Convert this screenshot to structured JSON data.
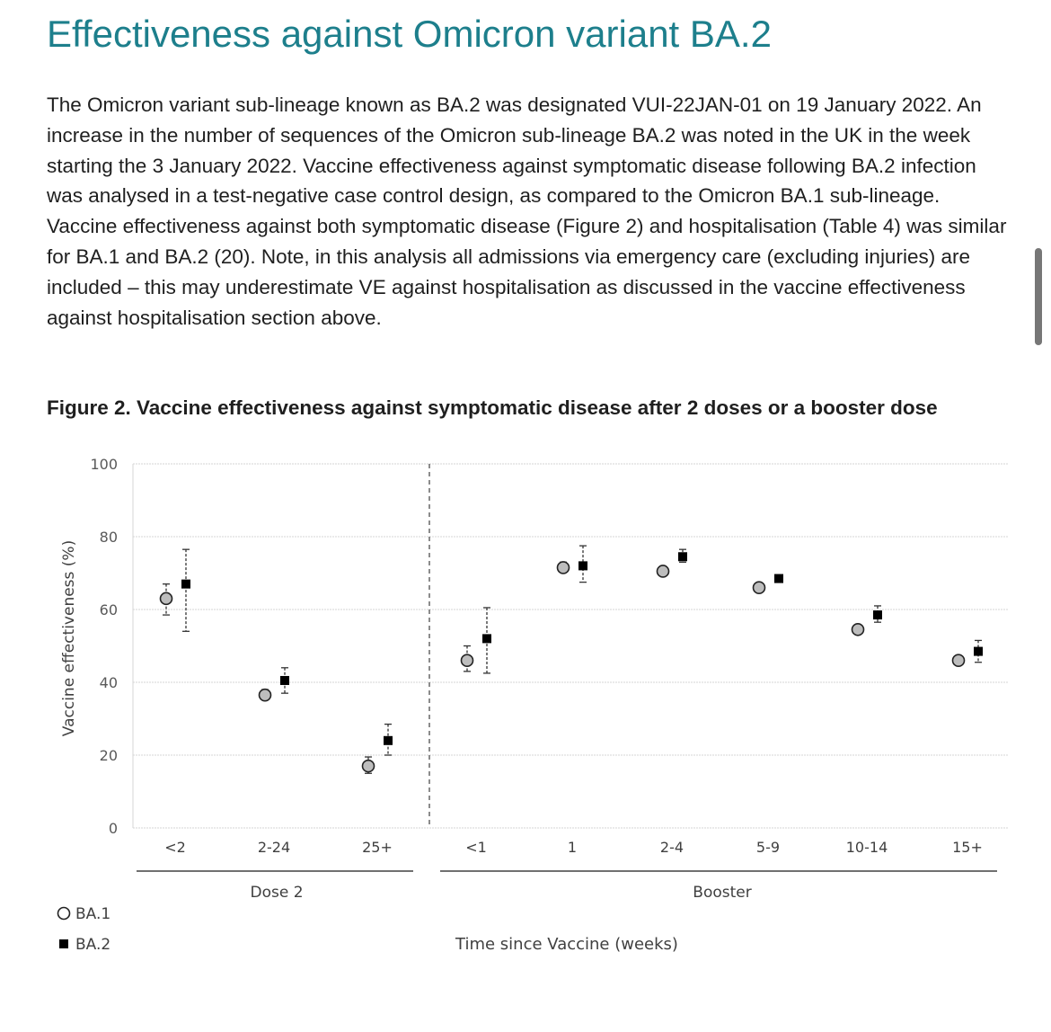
{
  "heading": "Effectiveness against Omicron variant BA.2",
  "paragraph": "The Omicron variant sub-lineage known as BA.2 was designated VUI-22JAN-01 on 19 January 2022. An increase in the number of sequences of the Omicron sub-lineage BA.2 was noted in the UK in the week starting the 3 January 2022. Vaccine effectiveness against symptomatic disease following BA.2 infection was analysed in a test-negative case control design, as compared to the Omicron BA.1 sub-lineage. Vaccine effectiveness against both symptomatic disease (Figure 2) and hospitalisation (Table 4) was similar for BA.1 and BA.2 (20). Note, in this analysis all admissions via emergency care (excluding injuries) are included – this may underestimate VE against hospitalisation as discussed in the vaccine effectiveness against hospitalisation section above.",
  "figure_caption": "Figure 2. Vaccine effectiveness against symptomatic disease after 2 doses or a booster dose",
  "chart_data": {
    "type": "scatter",
    "title": "",
    "xlabel": "Time since Vaccine (weeks)",
    "ylabel": "Vaccine effectiveness (%)",
    "ylim": [
      0,
      100
    ],
    "yticks": [
      0,
      20,
      40,
      60,
      80,
      100
    ],
    "grid": true,
    "legend_position": "bottom-left",
    "groups": [
      {
        "label": "Dose 2",
        "categories": [
          "<2",
          "2-24",
          "25+"
        ]
      },
      {
        "label": "Booster",
        "categories": [
          "<1",
          "1",
          "2-4",
          "5-9",
          "10-14",
          "15+"
        ]
      }
    ],
    "categories": [
      "<2",
      "2-24",
      "25+",
      "<1",
      "1",
      "2-4",
      "5-9",
      "10-14",
      "15+"
    ],
    "series": [
      {
        "name": "BA.1",
        "marker": "circle",
        "color": "#bdbdbd",
        "values": [
          63,
          36.5,
          17,
          46,
          71.5,
          70.5,
          66,
          54.5,
          46
        ],
        "lower": [
          58.5,
          35.5,
          15,
          43,
          70.5,
          70,
          65.5,
          54,
          45
        ],
        "upper": [
          67,
          38,
          19.5,
          50,
          73,
          71,
          67,
          55,
          47
        ]
      },
      {
        "name": "BA.2",
        "marker": "square",
        "color": "#000000",
        "values": [
          67,
          40.5,
          24,
          52,
          72,
          74.5,
          68.5,
          58.5,
          48.5
        ],
        "lower": [
          54,
          37,
          20,
          42.5,
          67.5,
          73,
          67.5,
          56.5,
          45.5
        ],
        "upper": [
          76.5,
          44,
          28.5,
          60.5,
          77.5,
          76.5,
          69.5,
          61,
          51.5
        ]
      }
    ]
  }
}
